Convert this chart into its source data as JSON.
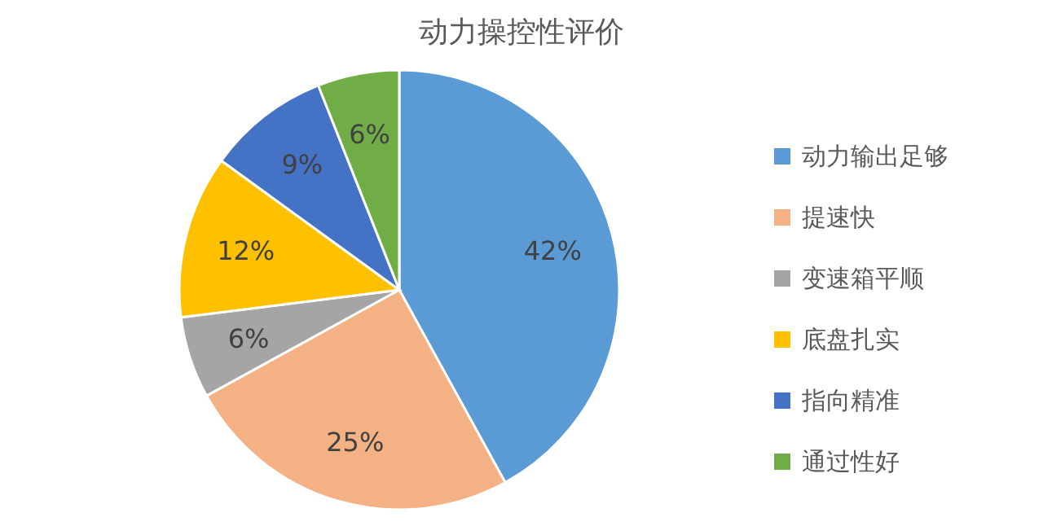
{
  "chart_data": {
    "type": "pie",
    "title": "动力操控性评价",
    "categories": [
      "动力输出足够",
      "提速快",
      "变速箱平顺",
      "底盘扎实",
      "指向精准",
      "通过性好"
    ],
    "values": [
      42,
      25,
      6,
      12,
      9,
      6
    ],
    "colors": [
      "#5b9bd5",
      "#f4b183",
      "#a5a5a5",
      "#ffc000",
      "#4472c4",
      "#70ad47"
    ],
    "value_labels": [
      "42%",
      "25%",
      "6%",
      "12%",
      "9%",
      "6%"
    ],
    "legend": "right"
  }
}
